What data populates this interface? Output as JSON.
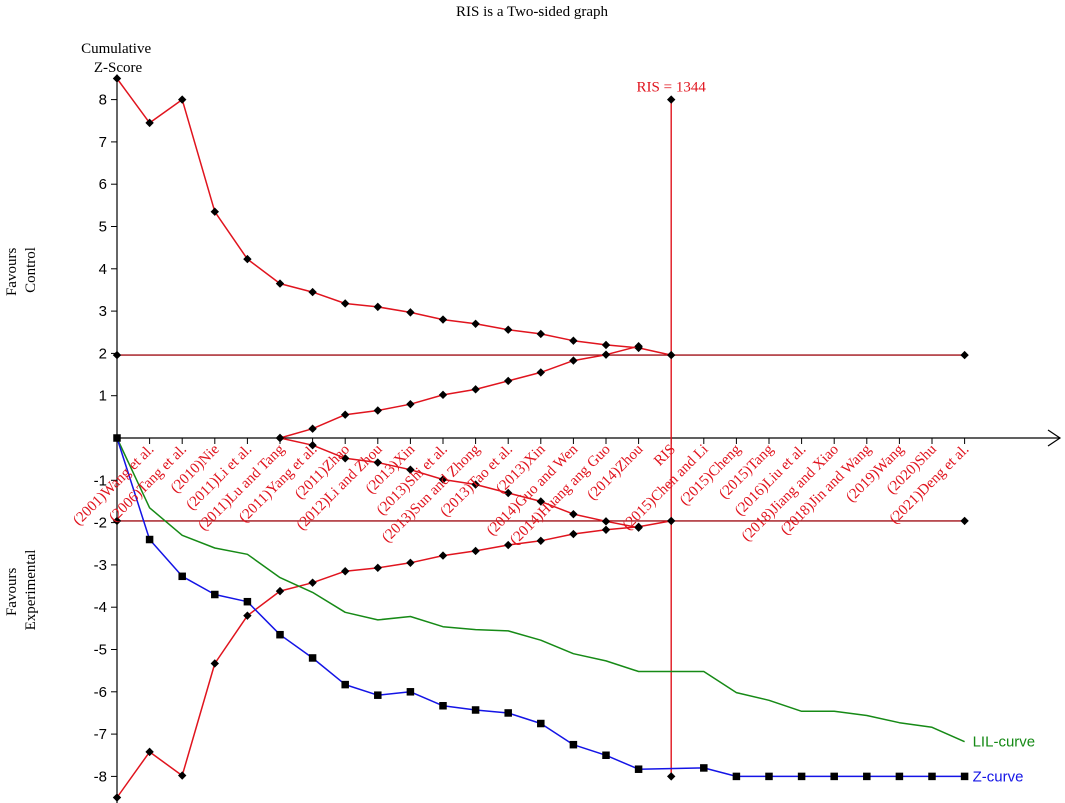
{
  "chart_data": {
    "type": "line",
    "title": "RIS is a Two-sided graph",
    "ylabel": "Cumulative Z-Score",
    "ylabel_lines": [
      "Cumulative",
      "Z-Score"
    ],
    "side_labels": {
      "top": [
        "Favours",
        "Control"
      ],
      "bottom": [
        "Favours",
        "Experimental"
      ]
    },
    "ylim": [
      -8.5,
      8.5
    ],
    "yticks": [
      -8,
      -7,
      -6,
      -5,
      -4,
      -3,
      -2,
      -1,
      1,
      2,
      3,
      4,
      5,
      6,
      7,
      8
    ],
    "ytick_labels": [
      "-8",
      "-7",
      "-6",
      "-5",
      "-4",
      "-3",
      "-2",
      "-1",
      "1",
      "2",
      "3",
      "4",
      "5",
      "6",
      "7",
      "8"
    ],
    "categories": [
      "(2001)Wang et al.",
      "(2006)Tang et al.",
      "(2010)Nie",
      "(2011)Li et al.",
      "(2011)Lu and Tang",
      "(2011)Yang et al.",
      "(2011)Zhao",
      "(2012)Li and Zhou",
      "(2013)Xin",
      "(2013)Shi et al.",
      "(2013)Sun and Zhong",
      "(2013)Tao et al.",
      "(2013)Xin",
      "(2014)Guo and Wen",
      "(2014)Huang ang Guo",
      "(2014)Zhou",
      "RIS",
      "(2015)Chen and Li",
      "(2015)Cheng",
      "(2015)Tang",
      "(2016)Liu et al.",
      "(2018)Jiang and Xiao",
      "(2018)Jin and Wang",
      "(2019)Wang",
      "(2020)Shu",
      "(2021)Deng et al."
    ],
    "x_positions": [
      1,
      2,
      3,
      4,
      5,
      6,
      7,
      8,
      9,
      10,
      11,
      12,
      13,
      14,
      15,
      16,
      17,
      18,
      19,
      20,
      21,
      22,
      23,
      24,
      25,
      26
    ],
    "xlim": [
      0,
      28
    ],
    "ris": {
      "label": "RIS = 1344",
      "x": 17,
      "color": "#e0141e"
    },
    "conventional_boundaries": {
      "upper": 1.96,
      "lower": -1.96,
      "x_start": 0,
      "x_end": 26,
      "color": "#a01018"
    },
    "series": [
      {
        "name": "Z-curve",
        "color": "#1414e6",
        "marker": "square",
        "x": [
          0,
          1,
          2,
          3,
          4,
          5,
          6,
          7,
          8,
          9,
          10,
          11,
          12,
          13,
          14,
          15,
          16,
          18,
          19,
          20,
          21,
          22,
          23,
          24,
          25,
          26
        ],
        "values": [
          0,
          -2.4,
          -3.27,
          -3.7,
          -3.87,
          -4.65,
          -5.2,
          -5.83,
          -6.08,
          -6.0,
          -6.33,
          -6.43,
          -6.5,
          -6.75,
          -7.25,
          -7.5,
          -7.83,
          -7.8,
          -8.0,
          -8.0,
          -8.0,
          -8.0,
          -8.0,
          -8.0,
          -8.0,
          -8.0
        ]
      },
      {
        "name": "LIL-curve",
        "color": "#168a16",
        "marker": "none",
        "x": [
          0,
          1,
          2,
          3,
          4,
          5,
          6,
          7,
          8,
          9,
          10,
          11,
          12,
          13,
          14,
          15,
          16,
          18,
          19,
          20,
          21,
          22,
          23,
          24,
          25,
          26
        ],
        "values": [
          0,
          -1.65,
          -2.3,
          -2.6,
          -2.75,
          -3.3,
          -3.65,
          -4.12,
          -4.3,
          -4.22,
          -4.46,
          -4.53,
          -4.56,
          -4.78,
          -5.1,
          -5.27,
          -5.52,
          -5.52,
          -6.02,
          -6.2,
          -6.46,
          -6.46,
          -6.56,
          -6.73,
          -6.84,
          -7.18
        ]
      },
      {
        "name": "Upper monitoring boundary",
        "color": "#e0141e",
        "marker": "diamond",
        "x": [
          0,
          1,
          2,
          3,
          4,
          5,
          6,
          7,
          8,
          9,
          10,
          11,
          12,
          13,
          14,
          15,
          16,
          17
        ],
        "values": [
          8.5,
          7.45,
          8.0,
          5.35,
          4.23,
          3.65,
          3.45,
          3.18,
          3.1,
          2.97,
          2.8,
          2.7,
          2.56,
          2.46,
          2.3,
          2.2,
          2.13,
          1.96
        ]
      },
      {
        "name": "Lower monitoring boundary",
        "color": "#e0141e",
        "marker": "diamond",
        "x": [
          0,
          1,
          2,
          3,
          4,
          5,
          6,
          7,
          8,
          9,
          10,
          11,
          12,
          13,
          14,
          15,
          16,
          17
        ],
        "values": [
          -8.5,
          -7.42,
          -7.98,
          -5.33,
          -4.2,
          -3.62,
          -3.42,
          -3.15,
          -3.07,
          -2.95,
          -2.78,
          -2.67,
          -2.53,
          -2.43,
          -2.27,
          -2.17,
          -2.1,
          -1.96
        ]
      },
      {
        "name": "Upper futility boundary",
        "color": "#e0141e",
        "marker": "diamond",
        "x": [
          5,
          6,
          7,
          8,
          9,
          10,
          11,
          12,
          13,
          14,
          15,
          16
        ],
        "values": [
          0.0,
          0.22,
          0.55,
          0.65,
          0.8,
          1.02,
          1.15,
          1.35,
          1.55,
          1.83,
          1.97,
          2.17
        ]
      },
      {
        "name": "Lower futility boundary",
        "color": "#e0141e",
        "marker": "diamond",
        "x": [
          5,
          6,
          7,
          8,
          9,
          10,
          11,
          12,
          13,
          14,
          15,
          16
        ],
        "values": [
          0.0,
          -0.17,
          -0.48,
          -0.58,
          -0.75,
          -0.98,
          -1.1,
          -1.3,
          -1.5,
          -1.8,
          -1.97,
          -2.12
        ]
      }
    ],
    "legend": [
      {
        "label": "LIL-curve",
        "series": "LIL-curve",
        "color": "#168a16"
      },
      {
        "label": "Z-curve",
        "series": "Z-curve",
        "color": "#1414e6"
      }
    ],
    "grid": false
  }
}
